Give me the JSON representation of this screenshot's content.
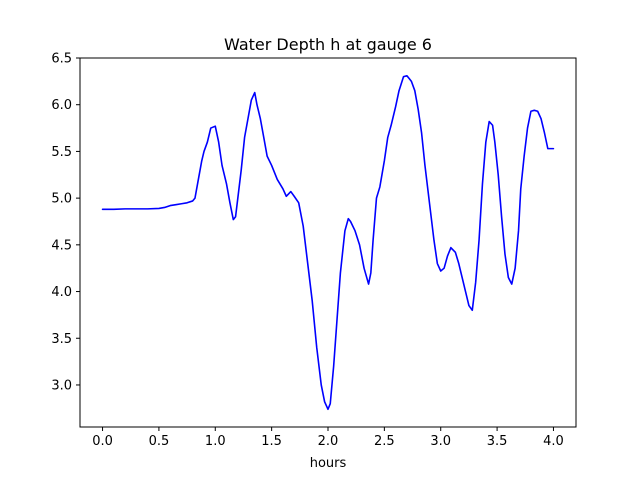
{
  "chart_data": {
    "type": "line",
    "title": "Water Depth h at gauge 6",
    "xlabel": "hours",
    "ylabel": "",
    "xlim": [
      -0.2,
      4.2
    ],
    "ylim": [
      2.55,
      6.5
    ],
    "xticks": [
      0.0,
      0.5,
      1.0,
      1.5,
      2.0,
      2.5,
      3.0,
      3.5,
      4.0
    ],
    "xtick_labels": [
      "0.0",
      "0.5",
      "1.0",
      "1.5",
      "2.0",
      "2.5",
      "3.0",
      "3.5",
      "4.0"
    ],
    "yticks": [
      3.0,
      3.5,
      4.0,
      4.5,
      5.0,
      5.5,
      6.0,
      6.5
    ],
    "ytick_labels": [
      "3.0",
      "3.5",
      "4.0",
      "4.5",
      "5.0",
      "5.5",
      "6.0",
      "6.5"
    ],
    "grid": false,
    "legend": "none",
    "series": [
      {
        "color": "#0000ff",
        "x": [
          0.0,
          0.1,
          0.2,
          0.3,
          0.4,
          0.5,
          0.55,
          0.6,
          0.65,
          0.7,
          0.75,
          0.8,
          0.82,
          0.85,
          0.88,
          0.9,
          0.93,
          0.96,
          1.0,
          1.03,
          1.06,
          1.1,
          1.13,
          1.16,
          1.18,
          1.2,
          1.23,
          1.26,
          1.29,
          1.32,
          1.35,
          1.37,
          1.4,
          1.43,
          1.46,
          1.5,
          1.55,
          1.6,
          1.63,
          1.67,
          1.7,
          1.74,
          1.78,
          1.82,
          1.86,
          1.9,
          1.94,
          1.97,
          2.0,
          2.02,
          2.05,
          2.08,
          2.11,
          2.15,
          2.18,
          2.2,
          2.24,
          2.28,
          2.32,
          2.36,
          2.38,
          2.4,
          2.43,
          2.46,
          2.5,
          2.53,
          2.56,
          2.6,
          2.63,
          2.67,
          2.7,
          2.72,
          2.74,
          2.77,
          2.8,
          2.83,
          2.86,
          2.9,
          2.94,
          2.97,
          3.0,
          3.03,
          3.06,
          3.09,
          3.13,
          3.16,
          3.19,
          3.22,
          3.25,
          3.28,
          3.31,
          3.34,
          3.37,
          3.4,
          3.43,
          3.46,
          3.48,
          3.51,
          3.54,
          3.57,
          3.6,
          3.63,
          3.66,
          3.69,
          3.71,
          3.74,
          3.77,
          3.8,
          3.83,
          3.86,
          3.89,
          3.92,
          3.95,
          3.98,
          4.0
        ],
        "y": [
          4.88,
          4.88,
          4.885,
          4.885,
          4.885,
          4.89,
          4.9,
          4.92,
          4.93,
          4.94,
          4.95,
          4.97,
          5.0,
          5.2,
          5.4,
          5.5,
          5.6,
          5.75,
          5.77,
          5.6,
          5.35,
          5.15,
          4.95,
          4.77,
          4.8,
          5.0,
          5.3,
          5.65,
          5.85,
          6.05,
          6.13,
          6.0,
          5.85,
          5.65,
          5.45,
          5.35,
          5.2,
          5.1,
          5.02,
          5.07,
          5.02,
          4.95,
          4.7,
          4.3,
          3.9,
          3.4,
          3.0,
          2.82,
          2.74,
          2.8,
          3.2,
          3.7,
          4.2,
          4.65,
          4.78,
          4.75,
          4.65,
          4.5,
          4.25,
          4.08,
          4.2,
          4.55,
          5.0,
          5.12,
          5.4,
          5.65,
          5.78,
          5.98,
          6.15,
          6.3,
          6.31,
          6.28,
          6.25,
          6.15,
          5.95,
          5.7,
          5.35,
          4.95,
          4.55,
          4.3,
          4.22,
          4.25,
          4.38,
          4.47,
          4.42,
          4.3,
          4.15,
          4.0,
          3.85,
          3.8,
          4.1,
          4.55,
          5.15,
          5.6,
          5.82,
          5.78,
          5.6,
          5.25,
          4.8,
          4.4,
          4.15,
          4.08,
          4.25,
          4.65,
          5.1,
          5.45,
          5.75,
          5.93,
          5.94,
          5.93,
          5.85,
          5.7,
          5.53,
          5.53,
          5.53
        ]
      }
    ]
  }
}
